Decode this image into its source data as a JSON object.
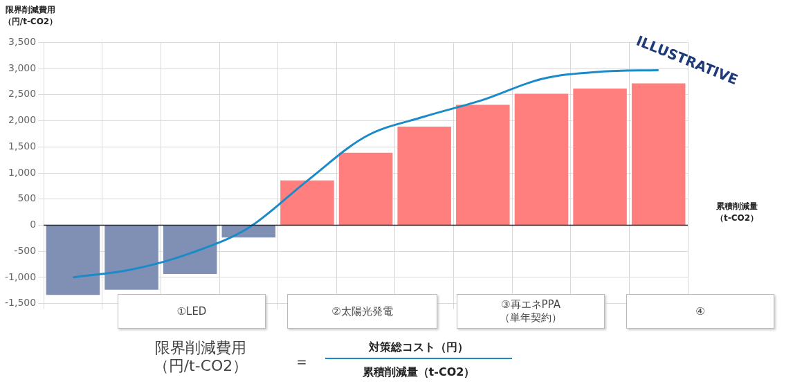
{
  "chart_data": {
    "type": "bar",
    "ylabel": "限界削減費用（円/t-CO2）",
    "xlabel": "累積削減量（t-CO2）",
    "categories": [
      null,
      null,
      null,
      null,
      null,
      null,
      null,
      null,
      null,
      null,
      null
    ],
    "series": [
      {
        "colors": [
          "#8090b4",
          "#8090b4",
          "#8090b4",
          "#8090b4",
          "#ff7f7f",
          "#ff7f7f",
          "#ff7f7f",
          "#ff7f7f",
          "#ff7f7f",
          "#ff7f7f",
          "#ff7f7f"
        ],
        "values": [
          -1350,
          -1250,
          -950,
          -250,
          870,
          1400,
          1900,
          2320,
          2530,
          2630,
          2730
        ]
      },
      {
        "type": "line",
        "color": "#1a8ac8",
        "values": [
          -1000,
          -850,
          -540,
          -50,
          850,
          1700,
          2080,
          2400,
          2800,
          2940,
          2970
        ]
      }
    ],
    "ylim": [
      -1500,
      3500
    ],
    "yticks": [
      {
        "value": -1500,
        "label": "-1,500"
      },
      {
        "value": -1000,
        "label": "-1,000"
      },
      {
        "value": -500,
        "label": "-500"
      },
      0,
      500,
      {
        "value": 1000,
        "label": "1,000"
      },
      {
        "value": 1500,
        "label": "1,500"
      },
      {
        "value": 2000,
        "label": "2,000"
      },
      {
        "value": 2500,
        "label": "2,500"
      },
      {
        "value": 3000,
        "label": "3,000"
      },
      {
        "value": 3500,
        "label": "3,500"
      }
    ],
    "grid": true,
    "legend": false,
    "marker": "none",
    "tick_labels": "y",
    "annotations": [
      "①LED",
      "②太陽光発電",
      "③再エネPPA\n（単年契約）",
      "④",
      "ILLUSTRATIVE",
      "限界削減費用（円/t-CO2）",
      "＝",
      "対策総コスト（円）",
      "累積削減量（t-CO2）"
    ]
  }
}
